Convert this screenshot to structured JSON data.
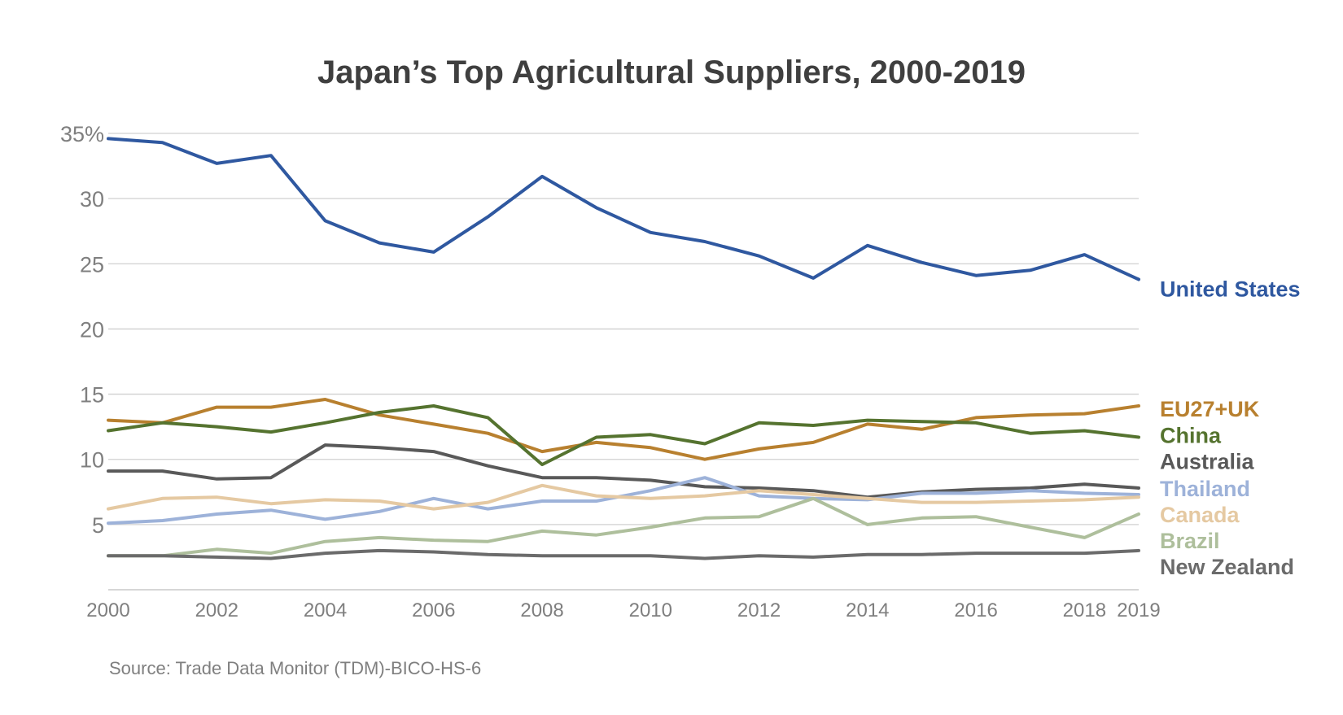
{
  "chart_data": {
    "type": "line",
    "title": "Japan’s Top Agricultural Suppliers, 2000-2019",
    "source": "Source: Trade Data Monitor (TDM)-BICO-HS-6",
    "xlabel": "",
    "ylabel": "",
    "x": [
      2000,
      2001,
      2002,
      2003,
      2004,
      2005,
      2006,
      2007,
      2008,
      2009,
      2010,
      2011,
      2012,
      2013,
      2014,
      2015,
      2016,
      2017,
      2018,
      2019
    ],
    "xtick_labels": [
      "2000",
      "2002",
      "2004",
      "2006",
      "2008",
      "2010",
      "2012",
      "2014",
      "2016",
      "2018",
      "2019"
    ],
    "xtick_values": [
      2000,
      2002,
      2004,
      2006,
      2008,
      2010,
      2012,
      2014,
      2016,
      2018,
      2019
    ],
    "ytick_labels": [
      "35%",
      "30",
      "25",
      "20",
      "15",
      "10",
      "5"
    ],
    "ytick_values": [
      35,
      30,
      25,
      20,
      15,
      10,
      5
    ],
    "ylim": [
      0,
      35
    ],
    "grid": true,
    "legend": "right-end labels",
    "series": [
      {
        "name": "United States",
        "color": "#2f58a0",
        "label_y": 23.1,
        "values": [
          34.6,
          34.3,
          32.7,
          33.3,
          28.3,
          26.6,
          25.9,
          28.6,
          31.7,
          29.3,
          27.4,
          26.7,
          25.6,
          23.9,
          26.4,
          25.1,
          24.1,
          24.5,
          25.7,
          23.8
        ]
      },
      {
        "name": "EU27+UK",
        "color": "#b8802f",
        "label_y": 13.9,
        "values": [
          13.0,
          12.8,
          14.0,
          14.0,
          14.6,
          13.4,
          12.7,
          12.0,
          10.6,
          11.3,
          10.9,
          10.0,
          10.8,
          11.3,
          12.7,
          12.3,
          13.2,
          13.4,
          13.5,
          14.1
        ]
      },
      {
        "name": "China",
        "color": "#55732f",
        "label_y": 11.9,
        "values": [
          12.2,
          12.8,
          12.5,
          12.1,
          12.8,
          13.6,
          14.1,
          13.2,
          9.6,
          11.7,
          11.9,
          11.2,
          12.8,
          12.6,
          13.0,
          12.9,
          12.8,
          12.0,
          12.2,
          11.7
        ]
      },
      {
        "name": "Australia",
        "color": "#595959",
        "label_y": 9.9,
        "values": [
          9.1,
          9.1,
          8.5,
          8.6,
          11.1,
          10.9,
          10.6,
          9.5,
          8.6,
          8.6,
          8.4,
          7.9,
          7.8,
          7.6,
          7.1,
          7.5,
          7.7,
          7.8,
          8.1,
          7.8
        ]
      },
      {
        "name": "Thailand",
        "color": "#9db2d9",
        "label_y": 7.8,
        "values": [
          5.1,
          5.3,
          5.8,
          6.1,
          5.4,
          6.0,
          7.0,
          6.2,
          6.8,
          6.8,
          7.6,
          8.6,
          7.2,
          7.0,
          6.9,
          7.4,
          7.4,
          7.6,
          7.4,
          7.3
        ]
      },
      {
        "name": "Canada",
        "color": "#e5c9a2",
        "label_y": 5.8,
        "values": [
          6.2,
          7.0,
          7.1,
          6.6,
          6.9,
          6.8,
          6.2,
          6.7,
          8.0,
          7.2,
          7.0,
          7.2,
          7.6,
          7.3,
          7.0,
          6.7,
          6.7,
          6.8,
          6.9,
          7.1
        ]
      },
      {
        "name": "Brazil",
        "color": "#aebf9c",
        "label_y": 3.8,
        "values": [
          2.6,
          2.6,
          3.1,
          2.8,
          3.7,
          4.0,
          3.8,
          3.7,
          4.5,
          4.2,
          4.8,
          5.5,
          5.6,
          7.0,
          5.0,
          5.5,
          5.6,
          4.8,
          4.0,
          5.8
        ]
      },
      {
        "name": "New Zealand",
        "color": "#6b6b6b",
        "label_y": 1.8,
        "values": [
          2.6,
          2.6,
          2.5,
          2.4,
          2.8,
          3.0,
          2.9,
          2.7,
          2.6,
          2.6,
          2.6,
          2.4,
          2.6,
          2.5,
          2.7,
          2.7,
          2.8,
          2.8,
          2.8,
          3.0
        ]
      }
    ]
  }
}
